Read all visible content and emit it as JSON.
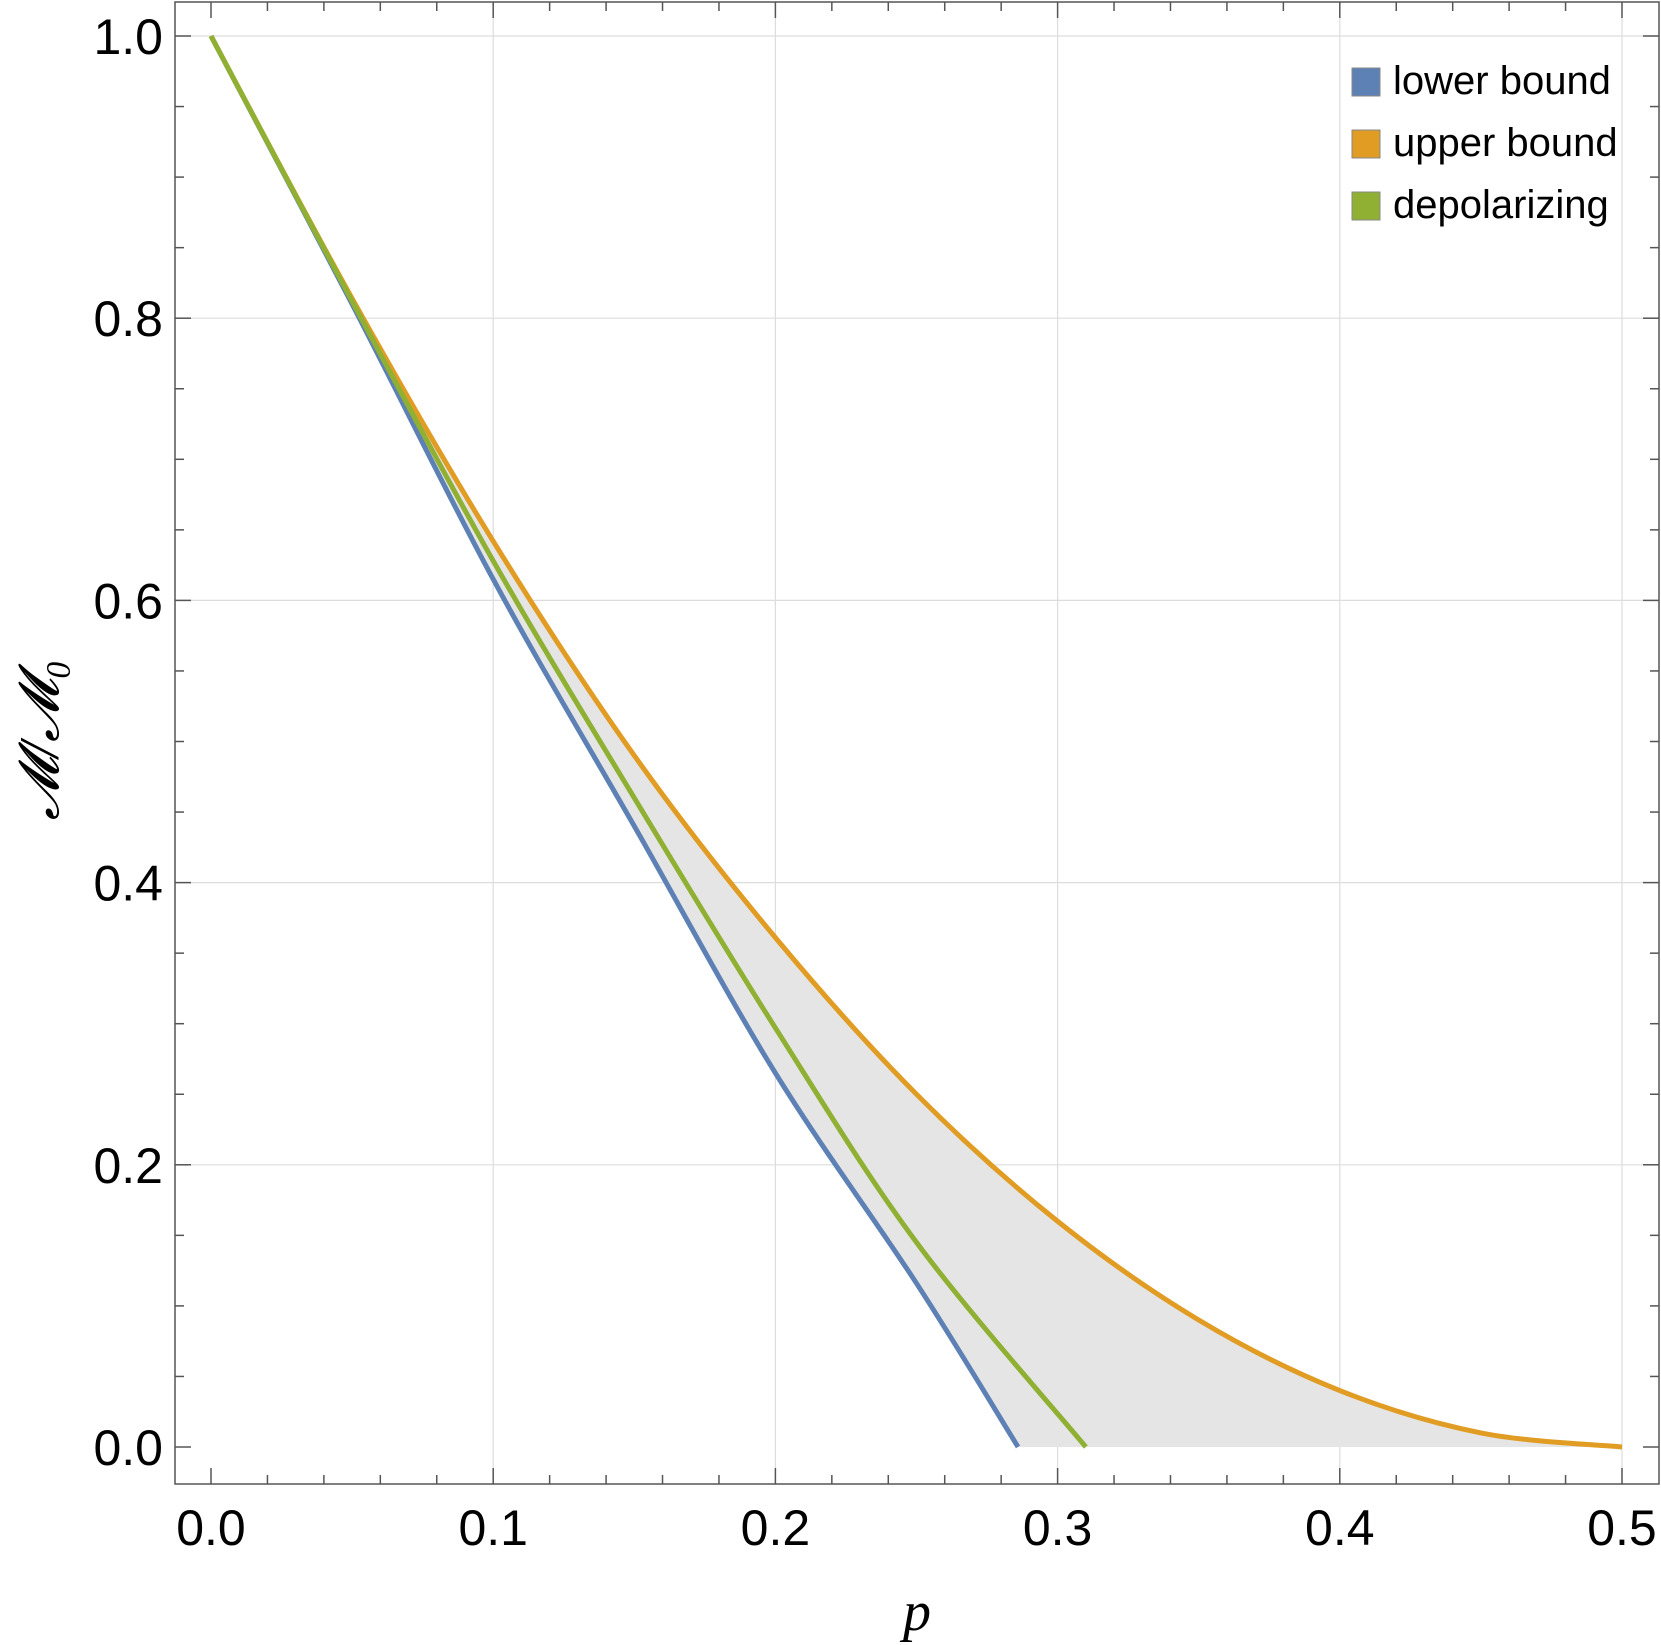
{
  "chart_data": {
    "type": "line",
    "xlabel": "p",
    "ylabel": "𝓜/𝓜₀",
    "xlim": [
      0.0,
      0.5
    ],
    "ylim": [
      0.0,
      1.0
    ],
    "x_ticks": [
      0.0,
      0.1,
      0.2,
      0.3,
      0.4,
      0.5
    ],
    "x_tick_labels": [
      "0.0",
      "0.1",
      "0.2",
      "0.3",
      "0.4",
      "0.5"
    ],
    "y_ticks": [
      0.0,
      0.2,
      0.4,
      0.6,
      0.8,
      1.0
    ],
    "y_tick_labels": [
      "0.0",
      "0.2",
      "0.4",
      "0.6",
      "0.8",
      "1.0"
    ],
    "grid": true,
    "legend_position": "top-right",
    "shaded_region": {
      "between": [
        "lower bound",
        "upper bound"
      ],
      "color": "#e5e5e5"
    },
    "series": [
      {
        "name": "lower bound",
        "color": "#5e81b5",
        "x": [
          0.0,
          0.05,
          0.1,
          0.15,
          0.2,
          0.25,
          0.286
        ],
        "y": [
          1.0,
          0.81,
          0.615,
          0.44,
          0.265,
          0.116,
          0.0
        ]
      },
      {
        "name": "upper bound",
        "color": "#e19c24",
        "x": [
          0.0,
          0.05,
          0.1,
          0.15,
          0.2,
          0.25,
          0.3,
          0.35,
          0.4,
          0.45,
          0.5
        ],
        "y": [
          1.0,
          0.814,
          0.642,
          0.49,
          0.361,
          0.25,
          0.16,
          0.09,
          0.04,
          0.01,
          0.0
        ]
      },
      {
        "name": "depolarizing",
        "color": "#8fb032",
        "x": [
          0.0,
          0.05,
          0.1,
          0.15,
          0.2,
          0.25,
          0.31
        ],
        "y": [
          1.0,
          0.812,
          0.628,
          0.46,
          0.297,
          0.145,
          0.0
        ]
      }
    ]
  }
}
